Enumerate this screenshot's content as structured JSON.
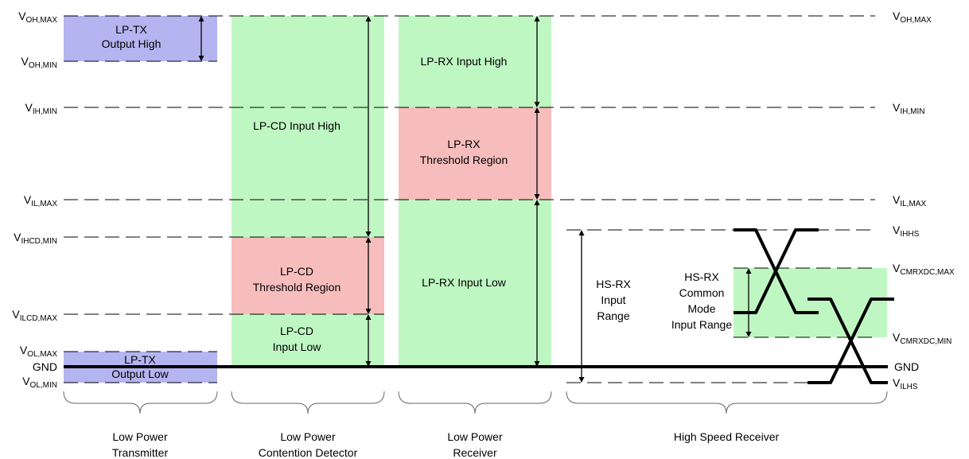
{
  "levels": {
    "voh_max": {
      "main": "V",
      "sub": "OH,MAX"
    },
    "voh_min": {
      "main": "V",
      "sub": "OH,MIN"
    },
    "vih_min": {
      "main": "V",
      "sub": "IH,MIN"
    },
    "vil_max": {
      "main": "V",
      "sub": "IL,MAX"
    },
    "vihcd_min": {
      "main": "V",
      "sub": "IHCD,MIN"
    },
    "vilcd_max": {
      "main": "V",
      "sub": "ILCD,MAX"
    },
    "vol_max": {
      "main": "V",
      "sub": "OL,MAX"
    },
    "gnd": {
      "text": "GND"
    },
    "vol_min": {
      "main": "V",
      "sub": "OL,MIN"
    },
    "vihhs": {
      "main": "V",
      "sub": "IHHS"
    },
    "vcmrxdc_max": {
      "main": "V",
      "sub": "CMRXDC,MAX"
    },
    "vcmrxdc_min": {
      "main": "V",
      "sub": "CMRXDC,MIN"
    },
    "vilhs": {
      "main": "V",
      "sub": "ILHS"
    }
  },
  "regions": {
    "lptx_high": [
      "LP-TX",
      "Output High"
    ],
    "lptx_low": [
      "LP-TX",
      "Output Low"
    ],
    "lpcd_high": [
      "LP-CD Input High"
    ],
    "lpcd_threshold": [
      "LP-CD",
      "Threshold Region"
    ],
    "lpcd_low": [
      "LP-CD",
      "Input Low"
    ],
    "lprx_high": [
      "LP-RX Input High"
    ],
    "lprx_threshold": [
      "LP-RX",
      "Threshold Region"
    ],
    "lprx_low": [
      "LP-RX Input Low"
    ],
    "hsrx_range": [
      "HS-RX",
      "Input",
      "Range"
    ],
    "hsrx_common": [
      "HS-RX",
      "Common",
      "Mode",
      "Input Range"
    ]
  },
  "groups": {
    "transmitter": [
      "Low Power",
      "Transmitter"
    ],
    "detector": [
      "Low Power",
      "Contention Detector"
    ],
    "receiver": [
      "Low Power",
      "Receiver"
    ],
    "hs_receiver": [
      "High Speed Receiver"
    ]
  },
  "colors": {
    "blue": "#b4b4f0",
    "green": "#bff7c2",
    "red": "#f7bdbd"
  }
}
